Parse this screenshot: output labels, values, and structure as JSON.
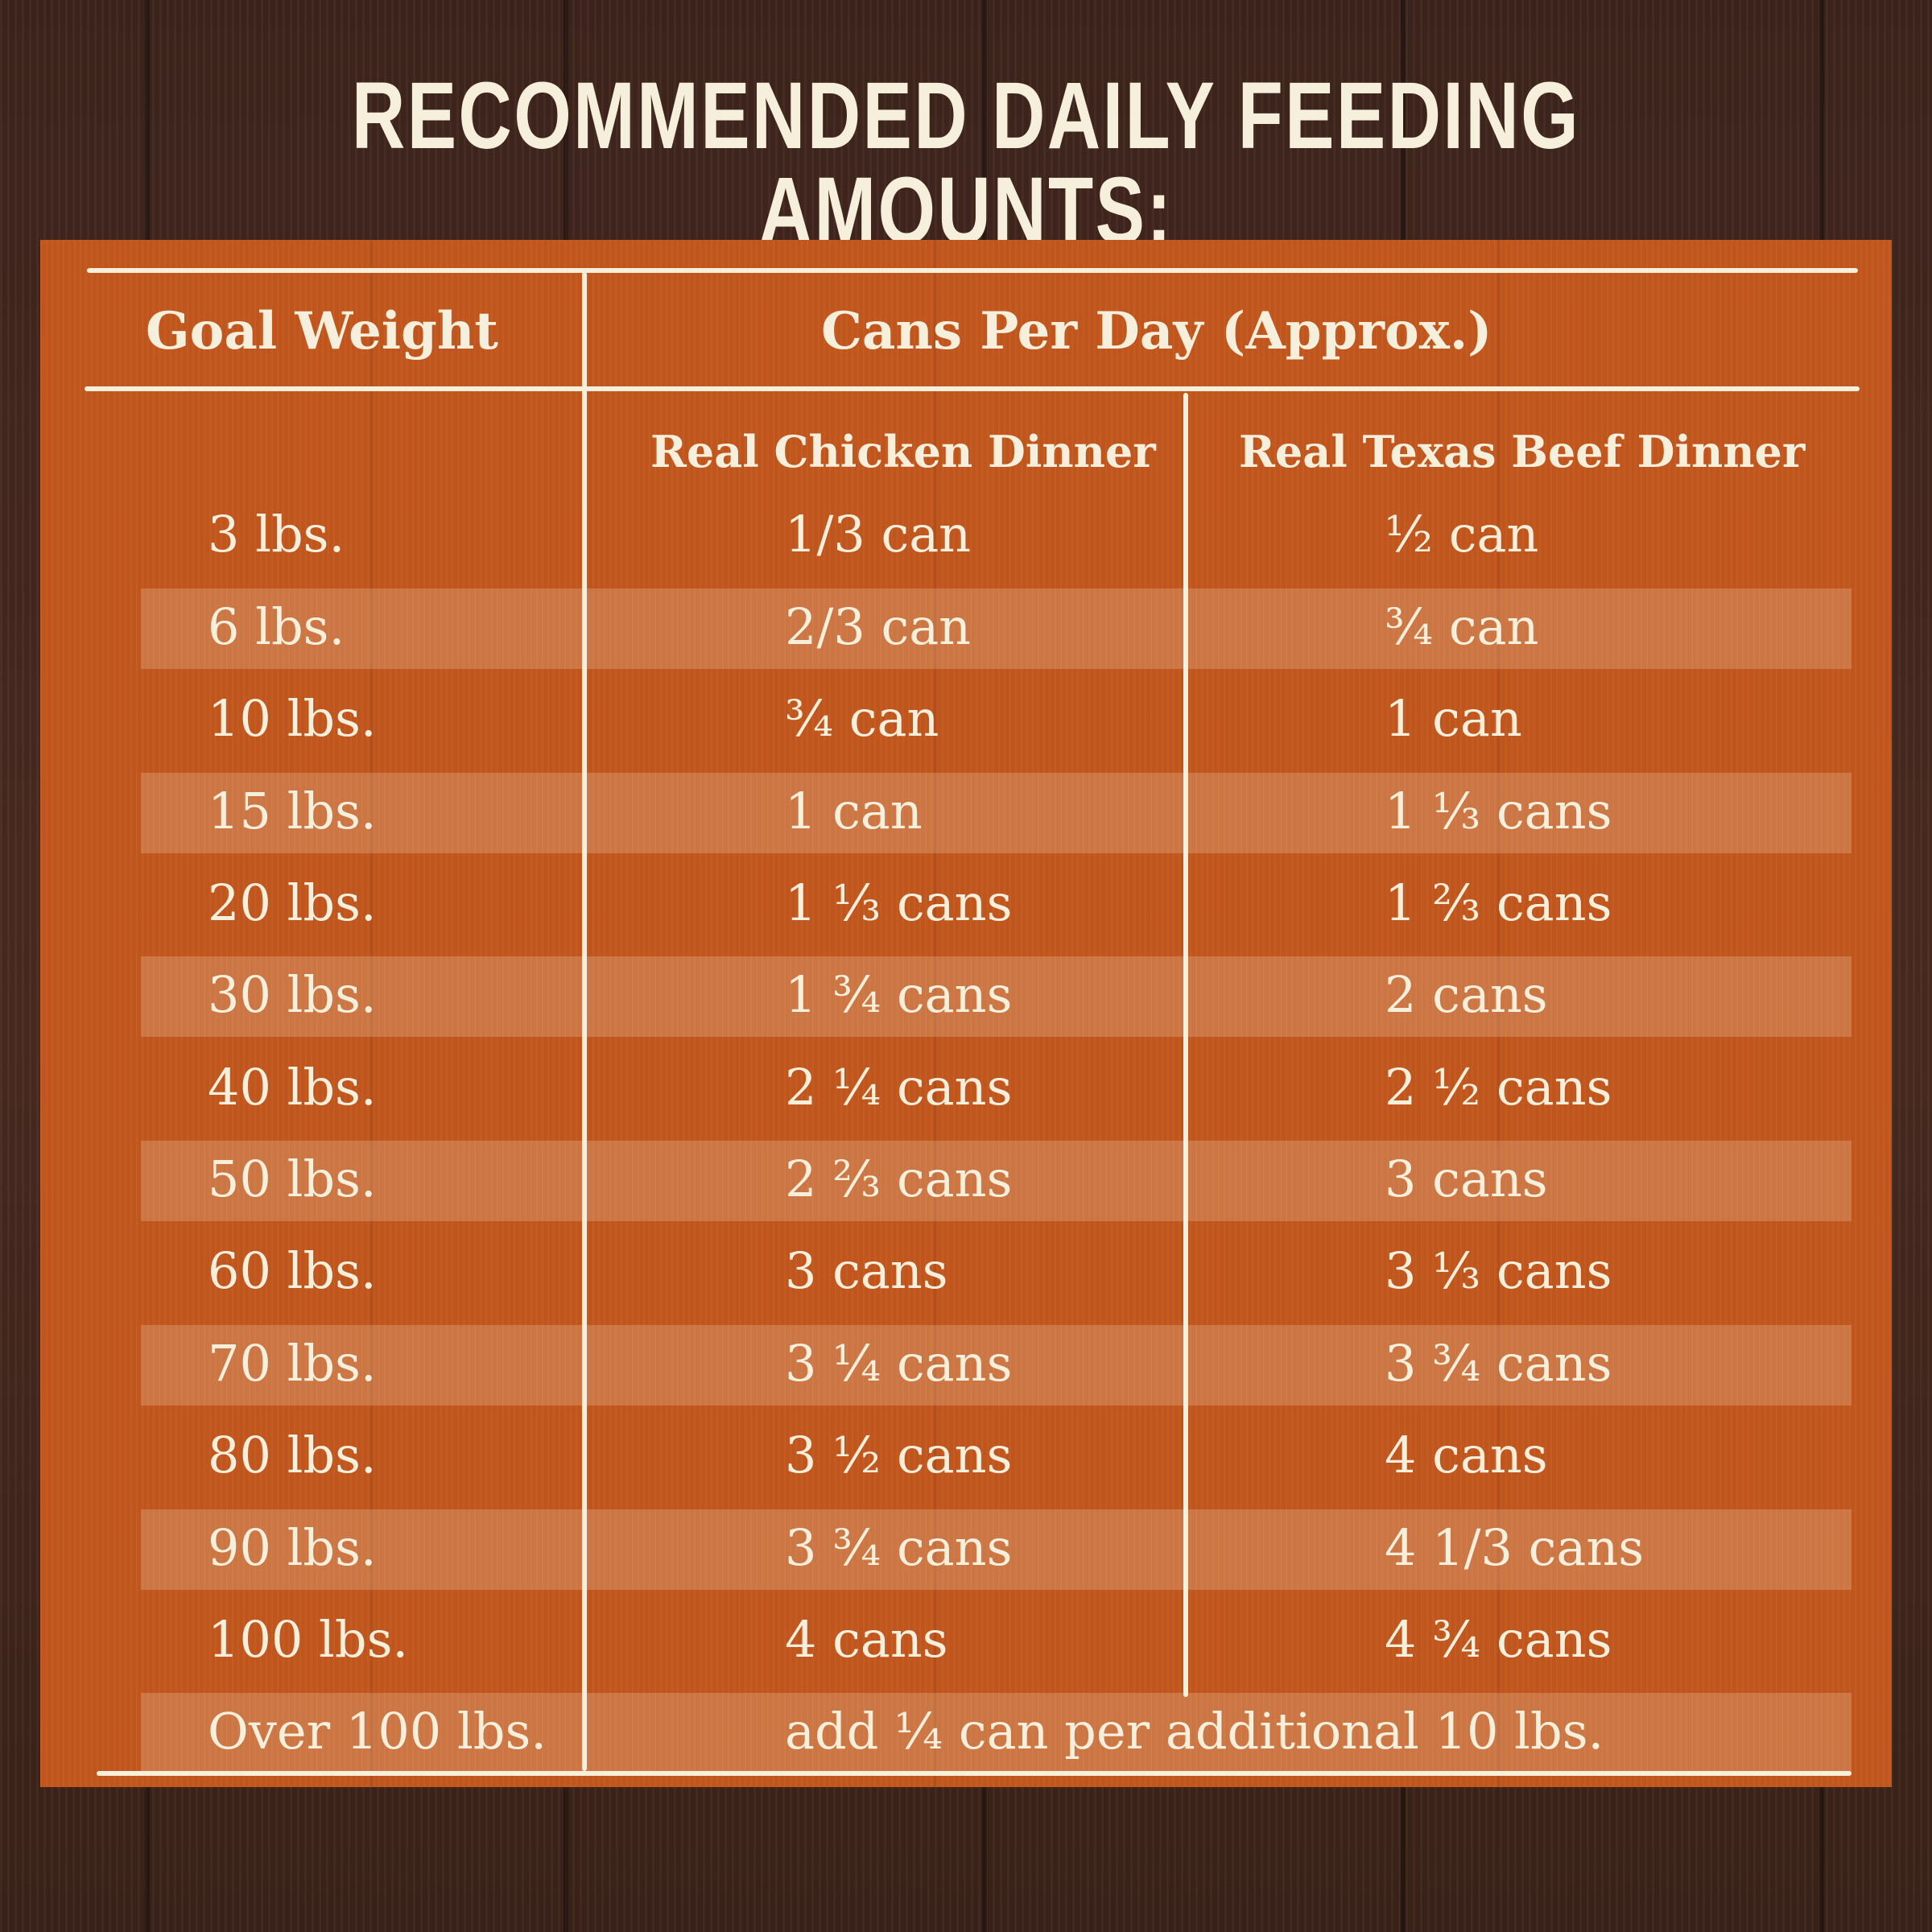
{
  "title": "RECOMMENDED DAILY FEEDING AMOUNTS:",
  "headers": {
    "goal_weight": "Goal Weight",
    "cans_per_day": "Cans Per Day (Approx.)",
    "chicken": "Real Chicken Dinner",
    "beef": "Real Texas Beef Dinner"
  },
  "rows": [
    {
      "weight": "3 lbs.",
      "chicken": "1/3 can",
      "beef": "½ can"
    },
    {
      "weight": "6 lbs.",
      "chicken": "2/3 can",
      "beef": "¾ can"
    },
    {
      "weight": "10 lbs.",
      "chicken": "¾ can",
      "beef": "1 can"
    },
    {
      "weight": "15 lbs.",
      "chicken": "1 can",
      "beef": "1 ⅓ cans"
    },
    {
      "weight": "20 lbs.",
      "chicken": "1 ⅓ cans",
      "beef": "1 ⅔ cans"
    },
    {
      "weight": "30 lbs.",
      "chicken": "1 ¾ cans",
      "beef": "2 cans"
    },
    {
      "weight": "40 lbs.",
      "chicken": "2 ¼ cans",
      "beef": "2 ½ cans"
    },
    {
      "weight": "50 lbs.",
      "chicken": "2 ⅔ cans",
      "beef": "3 cans"
    },
    {
      "weight": "60 lbs.",
      "chicken": "3 cans",
      "beef": "3 ⅓ cans"
    },
    {
      "weight": "70 lbs.",
      "chicken": "3 ¼ cans",
      "beef": "3 ¾ cans"
    },
    {
      "weight": "80 lbs.",
      "chicken": "3 ½ cans",
      "beef": "4 cans"
    },
    {
      "weight": "90 lbs.",
      "chicken": "3 ¾ cans",
      "beef": "4 1/3 cans"
    },
    {
      "weight": "100 lbs.",
      "chicken": "4 cans",
      "beef": "4 ¾ cans"
    }
  ],
  "footer_row": {
    "weight": "Over 100 lbs.",
    "note": "add ¼ can per additional 10 lbs."
  },
  "colors": {
    "background_wood": "#4a2a20",
    "board_orange": "#c4581f",
    "text_cream": "#f6efdc"
  }
}
